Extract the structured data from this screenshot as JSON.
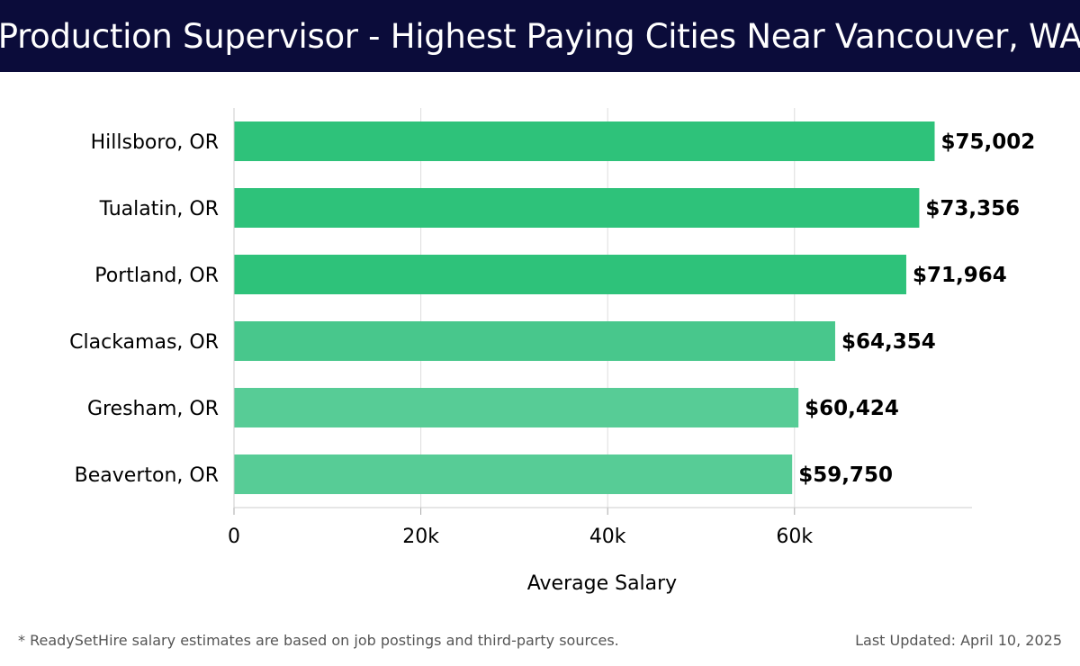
{
  "page": {
    "title": "Production Supervisor - Highest Paying Cities Near Vancouver, WA",
    "footnote": "* ReadySetHire salary estimates are based on job postings and third-party sources.",
    "last_updated": "Last Updated: April 10, 2025"
  },
  "colors": {
    "header_bg": "#0b0c3a",
    "bar_top": "#2ec27a",
    "bar_mid": "#48c78c",
    "bar_low": "#57cc96",
    "grid": "#dddddd",
    "text": "#000000"
  },
  "chart_data": {
    "type": "bar",
    "orientation": "horizontal",
    "title": "Production Supervisor - Highest Paying Cities Near Vancouver, WA",
    "xlabel": "Average Salary",
    "ylabel": "",
    "categories": [
      "Hillsboro, OR",
      "Tualatin, OR",
      "Portland, OR",
      "Clackamas, OR",
      "Gresham, OR",
      "Beaverton, OR"
    ],
    "values": [
      75002,
      73356,
      71964,
      64354,
      60424,
      59750
    ],
    "value_labels": [
      "$75,002",
      "$73,356",
      "$71,964",
      "$64,354",
      "$60,424",
      "$59,750"
    ],
    "xlim": [
      0,
      79000
    ],
    "xticks": [
      0,
      20000,
      40000,
      60000
    ],
    "xtick_labels": [
      "0",
      "20k",
      "40k",
      "60k"
    ],
    "grid": true
  }
}
